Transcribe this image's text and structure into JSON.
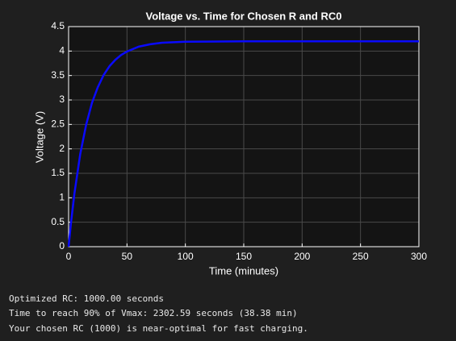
{
  "chart_data": {
    "type": "line",
    "title": "Voltage vs. Time for Chosen R and RC0",
    "x_label": "Time (minutes)",
    "y_label": "Voltage (V)",
    "x": [
      0,
      2,
      5,
      10,
      15,
      20,
      25,
      30,
      35,
      40,
      45,
      50,
      60,
      70,
      80,
      90,
      100,
      150,
      200,
      250,
      300
    ],
    "series": [
      {
        "name": "Voltage",
        "color": "#0a0aff",
        "values": [
          0,
          0.48,
          1.09,
          1.9,
          2.49,
          2.94,
          3.26,
          3.51,
          3.69,
          3.82,
          3.92,
          3.99,
          4.09,
          4.14,
          4.17,
          4.18,
          4.19,
          4.2,
          4.2,
          4.2,
          4.2
        ]
      }
    ],
    "xlim": [
      0,
      300
    ],
    "xticks": [
      0,
      50,
      100,
      150,
      200,
      250,
      300
    ],
    "ylim": [
      0,
      4.5
    ],
    "yticks": [
      0,
      0.5,
      1,
      1.5,
      2,
      2.5,
      3,
      3.5,
      4,
      4.5
    ],
    "grid": true
  },
  "console": {
    "lines": [
      "Optimized RC: 1000.00 seconds",
      "Time to reach 90% of Vmax: 2302.59 seconds (38.38 min)",
      "Your chosen RC (1000) is near-optimal for fast charging."
    ]
  }
}
